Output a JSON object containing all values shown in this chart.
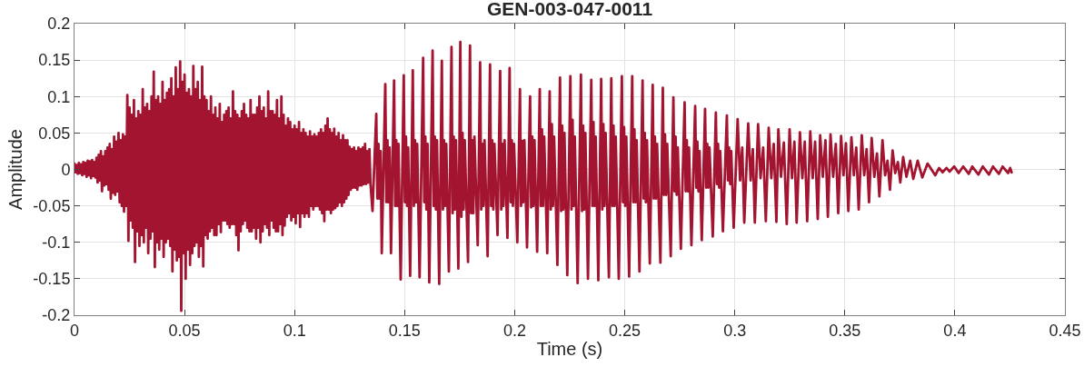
{
  "chart_data": {
    "type": "line",
    "title": "GEN-003-047-0011",
    "xlabel": "Time (s)",
    "ylabel": "Amplitude",
    "color": "#a2142f",
    "line_style": "solid",
    "grid": true,
    "xlim": [
      0,
      0.45
    ],
    "ylim": [
      -0.2,
      0.2
    ],
    "xticks": [
      0,
      0.05,
      0.1,
      0.15,
      0.2,
      0.25,
      0.3,
      0.35,
      0.4,
      0.45
    ],
    "yticks": [
      -0.2,
      -0.15,
      -0.1,
      -0.05,
      0,
      0.05,
      0.1,
      0.15,
      0.2
    ],
    "x": [
      0,
      0.0005,
      0.001,
      0.0015,
      0.002,
      0.0025,
      0.003,
      0.0035,
      0.004,
      0.0045,
      0.005,
      0.0055,
      0.006,
      0.0065,
      0.007,
      0.0075,
      0.008,
      0.0085,
      0.009,
      0.0095,
      0.01,
      0.0105,
      0.011,
      0.0115,
      0.012,
      0.0125,
      0.013,
      0.0135,
      0.014,
      0.0145,
      0.015,
      0.0155,
      0.016,
      0.0165,
      0.017,
      0.0175,
      0.018,
      0.0185,
      0.019,
      0.0195,
      0.02,
      0.0205,
      0.021,
      0.0215,
      0.022,
      0.0225,
      0.023,
      0.0235,
      0.024,
      0.0245,
      0.025,
      0.0255,
      0.026,
      0.0265,
      0.027,
      0.0275,
      0.028,
      0.0285,
      0.029,
      0.0295,
      0.03,
      0.0305,
      0.031,
      0.0315,
      0.032,
      0.0325,
      0.033,
      0.0335,
      0.034,
      0.0345,
      0.035,
      0.0355,
      0.036,
      0.0365,
      0.037,
      0.0375,
      0.038,
      0.0385,
      0.039,
      0.0395,
      0.04,
      0.0405,
      0.041,
      0.0415,
      0.042,
      0.0425,
      0.043,
      0.0435,
      0.044,
      0.0445,
      0.045,
      0.0455,
      0.046,
      0.0465,
      0.047,
      0.0475,
      0.048,
      0.0485,
      0.049,
      0.0495,
      0.05,
      0.0505,
      0.051,
      0.0515,
      0.052,
      0.0525,
      0.053,
      0.0535,
      0.054,
      0.0545,
      0.055,
      0.0555,
      0.056,
      0.0565,
      0.057,
      0.0575,
      0.058,
      0.0585,
      0.059,
      0.0595,
      0.06,
      0.0605,
      0.061,
      0.0615,
      0.062,
      0.0625,
      0.063,
      0.0635,
      0.064,
      0.0645,
      0.065,
      0.0655,
      0.066,
      0.0665,
      0.067,
      0.0675,
      0.068,
      0.0685,
      0.069,
      0.0695,
      0.07,
      0.0705,
      0.071,
      0.0715,
      0.072,
      0.0725,
      0.073,
      0.0735,
      0.074,
      0.0745,
      0.075,
      0.0755,
      0.076,
      0.0765,
      0.077,
      0.0775,
      0.078,
      0.0785,
      0.079,
      0.0795,
      0.08,
      0.0805,
      0.081,
      0.0815,
      0.082,
      0.0825,
      0.083,
      0.0835,
      0.084,
      0.0845,
      0.085,
      0.0855,
      0.086,
      0.0865,
      0.087,
      0.0875,
      0.088,
      0.0885,
      0.089,
      0.0895,
      0.09,
      0.0905,
      0.091,
      0.0915,
      0.092,
      0.0925,
      0.093,
      0.0935,
      0.094,
      0.0945,
      0.095,
      0.0955,
      0.096,
      0.0965,
      0.097,
      0.0975,
      0.098,
      0.0985,
      0.099,
      0.0995,
      0.1,
      0.1005,
      0.101,
      0.1015,
      0.102,
      0.1025,
      0.103,
      0.1035,
      0.104,
      0.1045,
      0.105,
      0.1055,
      0.106,
      0.1065,
      0.107,
      0.1075,
      0.108,
      0.1085,
      0.109,
      0.1095,
      0.11,
      0.1105,
      0.111,
      0.1115,
      0.112,
      0.1125,
      0.113,
      0.1135,
      0.114,
      0.1145,
      0.115,
      0.1155,
      0.116,
      0.1165,
      0.117,
      0.1175,
      0.118,
      0.1185,
      0.119,
      0.1195,
      0.12,
      0.1205,
      0.121,
      0.1215,
      0.122,
      0.1225,
      0.123,
      0.1235,
      0.124,
      0.1245,
      0.125,
      0.1255,
      0.126,
      0.1265,
      0.127,
      0.1275,
      0.128,
      0.1285,
      0.129,
      0.1295,
      0.13,
      0.1305,
      0.131,
      0.1315,
      0.132,
      0.1325,
      0.133,
      0.1335,
      0.134,
      0.1345,
      0.1354,
      0.1371,
      0.1376,
      0.1381,
      0.1386,
      0.1391,
      0.1396,
      0.1412,
      0.1417,
      0.1422,
      0.1427,
      0.1432,
      0.1438,
      0.1452,
      0.1457,
      0.1462,
      0.1467,
      0.1472,
      0.1482,
      0.1496,
      0.1501,
      0.1506,
      0.1511,
      0.1516,
      0.1525,
      0.1537,
      0.1542,
      0.1547,
      0.1552,
      0.1557,
      0.1568,
      0.1584,
      0.1589,
      0.1594,
      0.1599,
      0.1604,
      0.1612,
      0.1627,
      0.1632,
      0.1637,
      0.1642,
      0.1647,
      0.1657,
      0.1669,
      0.1674,
      0.1679,
      0.1684,
      0.1689,
      0.1701,
      0.1713,
      0.1718,
      0.1723,
      0.1728,
      0.1733,
      0.1744,
      0.1753,
      0.1758,
      0.1763,
      0.1768,
      0.1773,
      0.1788,
      0.1797,
      0.1802,
      0.1807,
      0.1812,
      0.1817,
      0.1832,
      0.1843,
      0.1848,
      0.1853,
      0.1858,
      0.1863,
      0.1877,
      0.1888,
      0.1893,
      0.1898,
      0.1903,
      0.1908,
      0.1922,
      0.1934,
      0.1939,
      0.1944,
      0.1949,
      0.1954,
      0.1967,
      0.1977,
      0.1982,
      0.1987,
      0.1992,
      0.1997,
      0.2012,
      0.2024,
      0.2029,
      0.2034,
      0.2039,
      0.2044,
      0.2056,
      0.207,
      0.2075,
      0.208,
      0.2085,
      0.209,
      0.2102,
      0.2114,
      0.2119,
      0.2124,
      0.2129,
      0.2134,
      0.2148,
      0.2159,
      0.2164,
      0.2169,
      0.2174,
      0.2179,
      0.2194,
      0.2206,
      0.2211,
      0.2216,
      0.2221,
      0.2226,
      0.2239,
      0.2253,
      0.2258,
      0.2263,
      0.2268,
      0.2273,
      0.2286,
      0.2301,
      0.2306,
      0.2311,
      0.2316,
      0.2321,
      0.2333,
      0.2348,
      0.2353,
      0.2358,
      0.2363,
      0.2368,
      0.238,
      0.2393,
      0.2398,
      0.2403,
      0.2408,
      0.2413,
      0.2428,
      0.2439,
      0.2444,
      0.2449,
      0.2454,
      0.2459,
      0.2473,
      0.2487,
      0.2492,
      0.2497,
      0.2502,
      0.2507,
      0.252,
      0.2534,
      0.2539,
      0.2544,
      0.2549,
      0.2554,
      0.2567,
      0.2581,
      0.2586,
      0.2591,
      0.2596,
      0.2601,
      0.2614,
      0.2627,
      0.2632,
      0.2637,
      0.2642,
      0.2647,
      0.2662,
      0.2673,
      0.2678,
      0.2683,
      0.2688,
      0.2693,
      0.2709,
      0.2721,
      0.2726,
      0.2731,
      0.2736,
      0.2741,
      0.2755,
      0.2772,
      0.2777,
      0.2782,
      0.2787,
      0.2792,
      0.2803,
      0.282,
      0.2825,
      0.283,
      0.2835,
      0.284,
      0.285,
      0.2865,
      0.287,
      0.2875,
      0.288,
      0.2885,
      0.29,
      0.2914,
      0.2919,
      0.2924,
      0.2929,
      0.2934,
      0.2946,
      0.2964,
      0.2969,
      0.2974,
      0.2979,
      0.2984,
      0.2995,
      0.3013,
      0.3024,
      0.3034,
      0.3043,
      0.3061,
      0.3072,
      0.3082,
      0.3091,
      0.3106,
      0.3117,
      0.3129,
      0.3141,
      0.3154,
      0.3166,
      0.3177,
      0.3189,
      0.3198,
      0.321,
      0.3223,
      0.3236,
      0.3249,
      0.326,
      0.3271,
      0.3281,
      0.3296,
      0.3307,
      0.3318,
      0.3329,
      0.3343,
      0.3354,
      0.3365,
      0.3377,
      0.3388,
      0.34,
      0.3412,
      0.3423,
      0.3435,
      0.3447,
      0.3459,
      0.347,
      0.3483,
      0.3494,
      0.3505,
      0.3516,
      0.353,
      0.3541,
      0.3552,
      0.3563,
      0.3577,
      0.3588,
      0.3599,
      0.361,
      0.3622,
      0.3634,
      0.3646,
      0.3657,
      0.3671,
      0.3683,
      0.3694,
      0.3705,
      0.3717,
      0.3729,
      0.3741,
      0.3752,
      0.3765,
      0.378,
      0.3797,
      0.3811,
      0.3831,
      0.3852,
      0.3876,
      0.3911,
      0.3928,
      0.3944,
      0.3962,
      0.3976,
      0.3997,
      0.4017,
      0.4038,
      0.4063,
      0.4079,
      0.4107,
      0.4127,
      0.4155,
      0.4173,
      0.42,
      0.4217,
      0.4242,
      0.4251,
      0.4258
    ],
    "values": [
      0.008,
      -0.004,
      0.006,
      -0.006,
      0.009,
      -0.005,
      0.007,
      -0.008,
      0.01,
      -0.006,
      0.009,
      -0.01,
      0.012,
      -0.008,
      0.011,
      -0.012,
      0.013,
      -0.009,
      0.01,
      -0.011,
      0.016,
      -0.018,
      0.02,
      -0.015,
      0.025,
      -0.03,
      0.018,
      -0.022,
      0.025,
      -0.02,
      0.03,
      -0.028,
      0.035,
      -0.04,
      0.028,
      -0.032,
      0.045,
      -0.035,
      0.038,
      -0.03,
      0.05,
      -0.045,
      0.04,
      -0.05,
      0.048,
      -0.058,
      0.045,
      -0.05,
      0.102,
      -0.098,
      0.085,
      -0.07,
      0.075,
      -0.08,
      0.095,
      -0.127,
      0.07,
      -0.085,
      0.08,
      -0.105,
      0.075,
      -0.09,
      0.11,
      -0.1,
      0.085,
      -0.08,
      0.09,
      -0.115,
      0.08,
      -0.095,
      0.1,
      -0.085,
      0.134,
      -0.134,
      0.095,
      -0.1,
      0.1,
      -0.11,
      0.09,
      -0.095,
      0.12,
      -0.12,
      0.095,
      -0.1,
      0.105,
      -0.095,
      0.11,
      -0.105,
      0.125,
      -0.14,
      0.1,
      -0.11,
      0.14,
      -0.125,
      0.11,
      -0.12,
      0.148,
      -0.194,
      0.12,
      -0.115,
      0.13,
      -0.15,
      0.105,
      -0.11,
      0.11,
      -0.131,
      0.1,
      -0.115,
      0.142,
      -0.105,
      0.11,
      -0.1,
      0.12,
      -0.12,
      0.095,
      -0.105,
      0.141,
      -0.133,
      0.1,
      -0.09,
      0.095,
      -0.095,
      0.08,
      -0.085,
      0.1,
      -0.08,
      0.075,
      -0.09,
      0.085,
      -0.09,
      0.07,
      -0.075,
      0.09,
      -0.086,
      0.065,
      -0.07,
      0.075,
      -0.07,
      0.08,
      -0.075,
      0.085,
      -0.08,
      0.07,
      -0.075,
      0.107,
      -0.075,
      0.08,
      -0.09,
      0.075,
      -0.111,
      0.07,
      -0.085,
      0.08,
      -0.075,
      0.09,
      -0.07,
      0.075,
      -0.08,
      0.07,
      -0.085,
      0.095,
      -0.085,
      0.075,
      -0.08,
      0.075,
      -0.095,
      0.085,
      -0.08,
      0.1,
      -0.1,
      0.08,
      -0.085,
      0.085,
      -0.075,
      0.07,
      -0.08,
      0.107,
      -0.09,
      0.08,
      -0.07,
      0.08,
      -0.08,
      0.075,
      -0.085,
      0.095,
      -0.085,
      0.07,
      -0.075,
      0.1,
      -0.09,
      0.075,
      -0.077,
      0.06,
      -0.065,
      0.07,
      -0.06,
      0.065,
      -0.07,
      0.055,
      -0.065,
      0.06,
      -0.074,
      0.055,
      -0.06,
      0.065,
      -0.079,
      0.05,
      -0.06,
      0.055,
      -0.065,
      0.05,
      -0.06,
      0.045,
      -0.065,
      0.052,
      -0.05,
      0.045,
      -0.055,
      0.048,
      -0.05,
      0.045,
      -0.05,
      0.05,
      -0.055,
      0.055,
      -0.06,
      0.05,
      -0.071,
      0.06,
      -0.055,
      0.07,
      -0.055,
      0.055,
      -0.06,
      0.05,
      -0.055,
      0.056,
      -0.053,
      0.045,
      -0.05,
      0.05,
      -0.045,
      0.04,
      -0.05,
      0.047,
      -0.045,
      0.04,
      -0.04,
      0.04,
      -0.035,
      0.031,
      -0.028,
      0.028,
      -0.025,
      0.03,
      -0.025,
      0.025,
      -0.028,
      0.03,
      -0.022,
      0.028,
      -0.022,
      0.03,
      -0.02,
      0.035,
      -0.02,
      0.025,
      -0.018,
      0.028,
      -0.02,
      -0.057,
      0.076,
      -0.04,
      0.035,
      -0.04,
      0.025,
      -0.115,
      0.117,
      -0.045,
      0.04,
      -0.045,
      0.03,
      -0.115,
      0.122,
      -0.05,
      0.04,
      -0.05,
      0.035,
      -0.151,
      0.129,
      -0.045,
      0.045,
      -0.05,
      0.03,
      -0.146,
      0.136,
      -0.05,
      0.04,
      -0.045,
      0.035,
      -0.148,
      0.153,
      -0.045,
      0.045,
      -0.055,
      0.035,
      -0.155,
      0.163,
      -0.05,
      0.045,
      -0.055,
      0.04,
      -0.157,
      0.149,
      -0.055,
      0.04,
      -0.05,
      0.035,
      -0.14,
      0.168,
      -0.06,
      0.045,
      -0.055,
      0.04,
      -0.136,
      0.175,
      -0.065,
      0.05,
      -0.055,
      0.04,
      -0.127,
      0.17,
      -0.06,
      0.04,
      -0.06,
      0.045,
      -0.104,
      0.147,
      -0.055,
      0.035,
      -0.05,
      0.04,
      -0.119,
      0.144,
      -0.05,
      0.04,
      -0.055,
      0.035,
      -0.09,
      0.135,
      -0.055,
      0.035,
      -0.05,
      0.04,
      -0.094,
      0.139,
      -0.045,
      0.04,
      -0.05,
      0.035,
      -0.1,
      0.11,
      -0.05,
      0.039,
      -0.045,
      0.04,
      -0.107,
      0.1,
      -0.052,
      0.045,
      -0.05,
      0.04,
      -0.113,
      0.11,
      -0.05,
      0.055,
      -0.05,
      0.045,
      -0.115,
      0.107,
      -0.055,
      0.062,
      -0.05,
      0.045,
      -0.131,
      0.126,
      -0.057,
      0.06,
      -0.055,
      0.05,
      -0.145,
      0.128,
      -0.055,
      0.068,
      -0.05,
      0.045,
      -0.156,
      0.13,
      -0.057,
      0.06,
      -0.055,
      0.05,
      -0.15,
      0.123,
      -0.05,
      0.065,
      -0.05,
      0.045,
      -0.152,
      0.124,
      -0.055,
      0.062,
      -0.05,
      0.05,
      -0.148,
      0.125,
      -0.05,
      0.06,
      -0.05,
      0.045,
      -0.15,
      0.128,
      -0.045,
      0.058,
      -0.05,
      0.045,
      -0.147,
      0.128,
      -0.045,
      0.055,
      -0.045,
      0.04,
      -0.14,
      0.122,
      -0.04,
      0.05,
      -0.045,
      0.04,
      -0.129,
      0.116,
      -0.04,
      0.045,
      -0.04,
      0.035,
      -0.128,
      0.112,
      -0.035,
      0.048,
      -0.035,
      0.035,
      -0.119,
      0.099,
      -0.03,
      0.045,
      -0.035,
      0.03,
      -0.109,
      0.092,
      -0.03,
      0.04,
      -0.03,
      0.03,
      -0.104,
      0.087,
      -0.025,
      0.038,
      -0.03,
      0.025,
      -0.097,
      0.083,
      -0.025,
      0.035,
      -0.025,
      0.03,
      -0.092,
      0.078,
      -0.02,
      0.035,
      -0.025,
      0.025,
      -0.085,
      0.074,
      -0.015,
      0.03,
      -0.02,
      0.025,
      -0.08,
      0.069,
      -0.015,
      0.03,
      -0.073,
      0.063,
      -0.015,
      0.028,
      -0.073,
      0.062,
      -0.012,
      0.03,
      -0.071,
      0.057,
      -0.012,
      0.035,
      -0.072,
      0.055,
      -0.01,
      0.037,
      -0.075,
      0.055,
      -0.012,
      0.038,
      -0.073,
      0.051,
      -0.012,
      0.038,
      -0.071,
      0.052,
      -0.012,
      0.038,
      -0.068,
      0.047,
      -0.01,
      0.04,
      -0.065,
      0.048,
      -0.01,
      0.035,
      -0.06,
      0.046,
      -0.008,
      0.036,
      -0.057,
      0.044,
      -0.008,
      0.03,
      -0.055,
      0.047,
      -0.008,
      0.028,
      -0.045,
      0.043,
      -0.01,
      0.022,
      -0.037,
      0.04,
      -0.008,
      0.012,
      -0.028,
      0.026,
      -0.005,
      0.01,
      -0.018,
      0.017,
      -0.01,
      0.012,
      -0.013,
      0.012,
      -0.011,
      0.008,
      -0.008,
      0.002,
      -0.004,
      0.002,
      -0.003,
      0.004,
      -0.005,
      0.004,
      -0.006,
      0.004,
      -0.007,
      0.004,
      -0.007,
      0.004,
      -0.006,
      0.004,
      -0.005,
      0.002,
      -0.004
    ]
  }
}
